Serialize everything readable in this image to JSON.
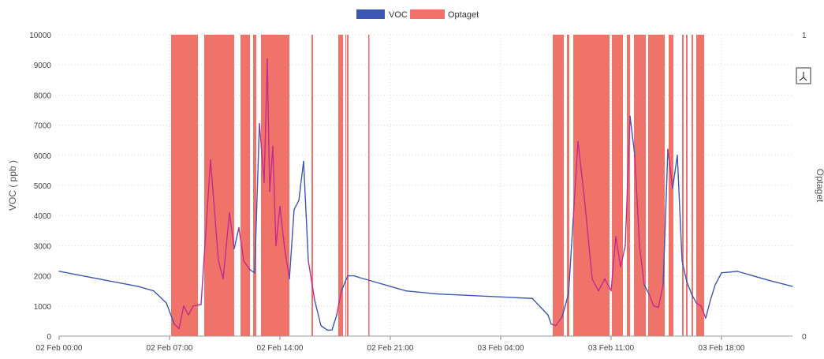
{
  "chart_data": {
    "type": "line",
    "legend": [
      "VOC",
      "Optaget"
    ],
    "legend_position": "top-center",
    "ylabel_left": "VOC ( ppb )",
    "ylabel_right": "Optaget",
    "ylim_left": [
      0,
      10000
    ],
    "ylim_right": [
      0,
      1
    ],
    "y_ticks_left": [
      "0",
      "1000",
      "2000",
      "3000",
      "4000",
      "5000",
      "6000",
      "7000",
      "8000",
      "9000",
      "10000"
    ],
    "y_ticks_right": [
      "0",
      "1"
    ],
    "x_ticks": [
      "02 Feb 00:00",
      "02 Feb 07:00",
      "02 Feb 14:00",
      "02 Feb 21:00",
      "03 Feb 04:00",
      "03 Feb 11:00",
      "03 Feb 18:00"
    ],
    "x_range_hours": [
      0,
      46.5
    ],
    "grid": true,
    "colors": {
      "voc": "#3b57b3",
      "voc_occupied": "#c42b8c",
      "optaget": "#f0736a",
      "icon": "#333333"
    },
    "series": [
      {
        "name": "VOC",
        "x": [
          0,
          2,
          4,
          5,
          6,
          6.8,
          7.3,
          7.6,
          7.9,
          8.2,
          8.5,
          9.0,
          9.6,
          10.1,
          10.4,
          10.8,
          11.1,
          11.4,
          11.7,
          12.1,
          12.4,
          12.7,
          13.0,
          13.2,
          13.35,
          13.55,
          13.75,
          14.0,
          14.3,
          14.6,
          14.9,
          15.2,
          15.5,
          15.8,
          16.2,
          16.6,
          17.0,
          17.3,
          17.6,
          17.9,
          18.3,
          18.7,
          19.0,
          20,
          21,
          22,
          24,
          26,
          28,
          30,
          31,
          31.2,
          31.5,
          31.9,
          32.3,
          32.6,
          32.9,
          33.3,
          33.8,
          34.2,
          34.6,
          35.0,
          35.3,
          35.6,
          35.9,
          36.2,
          36.5,
          36.8,
          37.1,
          37.4,
          37.7,
          38.0,
          38.3,
          38.6,
          38.9,
          39.2,
          39.5,
          39.8,
          40.1,
          40.4,
          40.7,
          41.0,
          41.3,
          41.6,
          42,
          43,
          44,
          45,
          46.5
        ],
        "values": [
          2150,
          1950,
          1750,
          1650,
          1500,
          1100,
          400,
          250,
          1000,
          700,
          1000,
          1050,
          5850,
          2500,
          1900,
          4100,
          2900,
          3600,
          2500,
          2200,
          2100,
          7050,
          5100,
          9200,
          4800,
          6300,
          3000,
          4300,
          2900,
          1900,
          4200,
          4500,
          5800,
          2500,
          1200,
          350,
          200,
          200,
          700,
          1500,
          2000,
          2000,
          1950,
          1800,
          1650,
          1500,
          1400,
          1350,
          1300,
          1250,
          700,
          400,
          350,
          650,
          1400,
          3900,
          6450,
          4600,
          1900,
          1500,
          1900,
          1500,
          3300,
          2300,
          3000,
          7300,
          6000,
          3000,
          1700,
          1400,
          1000,
          950,
          1700,
          6200,
          4900,
          6000,
          2500,
          1800,
          1400,
          1100,
          1000,
          600,
          1200,
          1700,
          2100,
          2150,
          2000,
          1850,
          1650
        ]
      },
      {
        "name": "Optaget",
        "intervals_hours": [
          [
            7.1,
            8.8
          ],
          [
            9.2,
            11.1
          ],
          [
            11.5,
            12.1
          ],
          [
            12.3,
            12.5
          ],
          [
            12.8,
            14.6
          ],
          [
            16.0,
            16.1
          ],
          [
            17.7,
            18.0
          ],
          [
            18.15,
            18.2
          ],
          [
            18.25,
            18.35
          ],
          [
            19.6,
            19.68
          ],
          [
            31.3,
            32.0
          ],
          [
            32.2,
            32.35
          ],
          [
            32.6,
            34.9
          ],
          [
            35.05,
            35.75
          ],
          [
            36.0,
            36.2
          ],
          [
            36.45,
            37.2
          ],
          [
            37.35,
            38.4
          ],
          [
            38.65,
            38.95
          ],
          [
            39.5,
            39.6
          ],
          [
            39.75,
            39.85
          ],
          [
            40.1,
            40.2
          ],
          [
            40.4,
            40.9
          ]
        ]
      }
    ]
  },
  "icons": {
    "export": "export-icon"
  }
}
